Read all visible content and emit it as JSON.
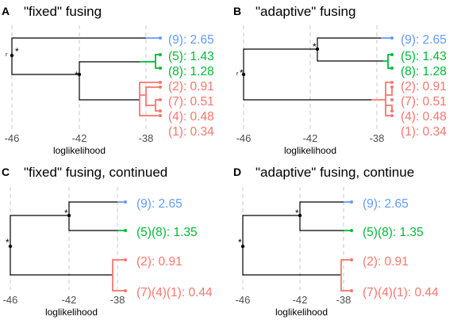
{
  "colors": {
    "blue": "#619cff",
    "green": "#00ba38",
    "red": "#f8766d",
    "black": "#000000",
    "grid": "#c8c8c8"
  },
  "axis": {
    "title": "loglikelihood",
    "ticks": [
      -46,
      -42,
      -38
    ]
  },
  "panels": [
    {
      "letter": "A",
      "title": "\"fixed\" fusing",
      "leaves": [
        {
          "text": "(9): 2.65",
          "color": "blue"
        },
        {
          "text": "(5): 1.43",
          "color": "green"
        },
        {
          "text": "(8): 1.28",
          "color": "green"
        },
        {
          "text": "(2): 0.91",
          "color": "red"
        },
        {
          "text": "(7): 0.51",
          "color": "red"
        },
        {
          "text": "(4): 0.48",
          "color": "red"
        },
        {
          "text": "(1): 0.34",
          "color": "red"
        }
      ],
      "stars": [
        "*",
        "*"
      ],
      "root_mark": "r"
    },
    {
      "letter": "B",
      "title": "\"adaptive\" fusing",
      "leaves": [
        {
          "text": "(9): 2.65",
          "color": "blue"
        },
        {
          "text": "(5): 1.43",
          "color": "green"
        },
        {
          "text": "(8): 1.28",
          "color": "green"
        },
        {
          "text": "(2): 0.91",
          "color": "red"
        },
        {
          "text": "(7): 0.51",
          "color": "red"
        },
        {
          "text": "(4): 0.48",
          "color": "red"
        },
        {
          "text": "(1): 0.34",
          "color": "red"
        }
      ],
      "stars": [
        "*",
        "*"
      ],
      "root_mark": "r"
    },
    {
      "letter": "C",
      "title": "\"fixed\" fusing, continued",
      "leaves": [
        {
          "text": "(9): 2.65",
          "color": "blue"
        },
        {
          "text": "(5)(8): 1.35",
          "color": "green"
        },
        {
          "text": "(2): 0.91",
          "color": "red"
        },
        {
          "text": "(7)(4)(1): 0.44",
          "color": "red"
        }
      ],
      "stars": [
        "*",
        "*"
      ]
    },
    {
      "letter": "D",
      "title": "\"adaptive\" fusing, continue",
      "leaves": [
        {
          "text": "(9): 2.65",
          "color": "blue"
        },
        {
          "text": "(5)(8): 1.35",
          "color": "green"
        },
        {
          "text": "(2): 0.91",
          "color": "red"
        },
        {
          "text": "(7)(4)(1): 0.44",
          "color": "red"
        }
      ],
      "stars": [
        "*",
        "*"
      ]
    }
  ]
}
